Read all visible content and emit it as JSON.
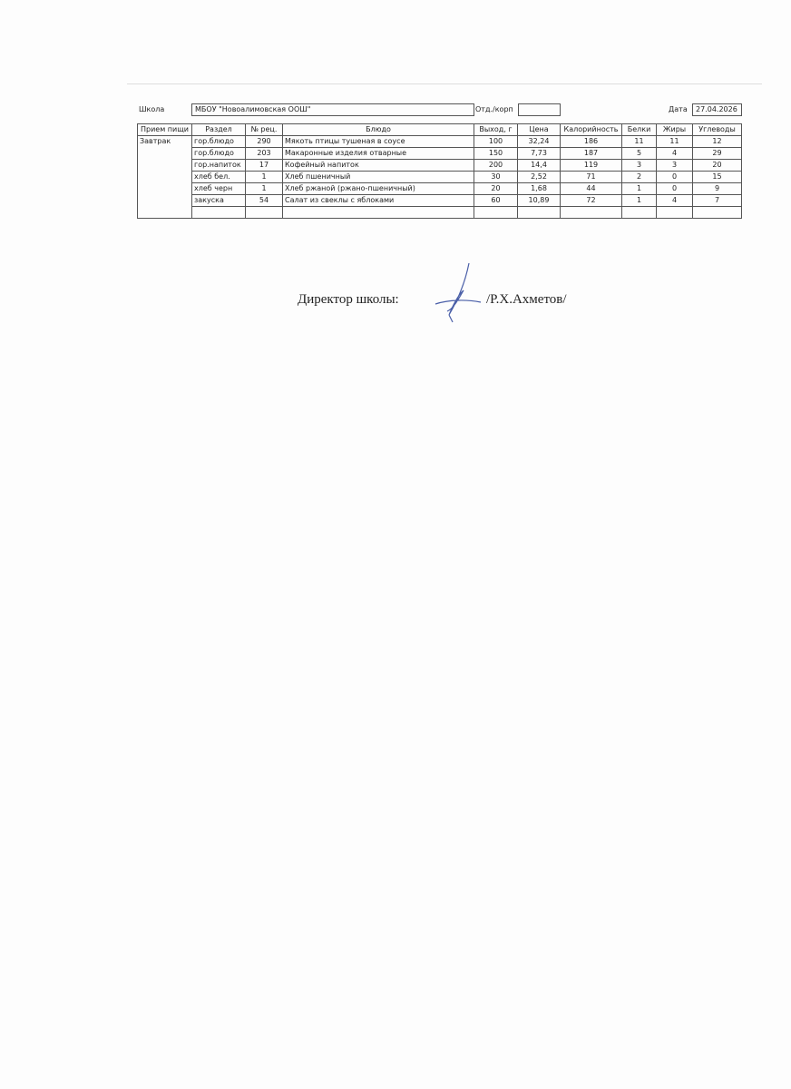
{
  "header": {
    "school_label": "Школа",
    "school_value": "МБОУ \"Новоалимовская ООШ\"",
    "dept_label": "Отд./корп",
    "dept_value": "",
    "date_label": "Дата",
    "date_value": "27.04.2026"
  },
  "table": {
    "columns": [
      "Прием пищи",
      "Раздел",
      "№ рец.",
      "Блюдо",
      "Выход, г",
      "Цена",
      "Калорийность",
      "Белки",
      "Жиры",
      "Углеводы"
    ],
    "meal": "Завтрак",
    "rows": [
      {
        "section": "гор.блюдо",
        "recipe": "290",
        "dish": "Мякоть птицы тушеная в соусе",
        "yield": "100",
        "price": "32,24",
        "kcal": "186",
        "protein": "11",
        "fat": "11",
        "carbs": "12"
      },
      {
        "section": "гор.блюдо",
        "recipe": "203",
        "dish": "Макаронные изделия отварные",
        "yield": "150",
        "price": "7,73",
        "kcal": "187",
        "protein": "5",
        "fat": "4",
        "carbs": "29"
      },
      {
        "section": "гор.напиток",
        "recipe": "17",
        "dish": "Кофейный напиток",
        "yield": "200",
        "price": "14,4",
        "kcal": "119",
        "protein": "3",
        "fat": "3",
        "carbs": "20"
      },
      {
        "section": "хлеб бел.",
        "recipe": "1",
        "dish": "Хлеб пшеничный",
        "yield": "30",
        "price": "2,52",
        "kcal": "71",
        "protein": "2",
        "fat": "0",
        "carbs": "15"
      },
      {
        "section": "хлеб черн",
        "recipe": "1",
        "dish": "Хлеб ржаной (ржано-пшеничный)",
        "yield": "20",
        "price": "1,68",
        "kcal": "44",
        "protein": "1",
        "fat": "0",
        "carbs": "9"
      },
      {
        "section": "закуска",
        "recipe": "54",
        "dish": "Салат из свеклы с яблоками",
        "yield": "60",
        "price": "10,89",
        "kcal": "72",
        "protein": "1",
        "fat": "4",
        "carbs": "7"
      }
    ]
  },
  "signature": {
    "title": "Директор школы:",
    "name": "/Р.Х.Ахметов/"
  },
  "colors": {
    "ink": "#222222",
    "signature_ink": "#4a5fa8"
  }
}
